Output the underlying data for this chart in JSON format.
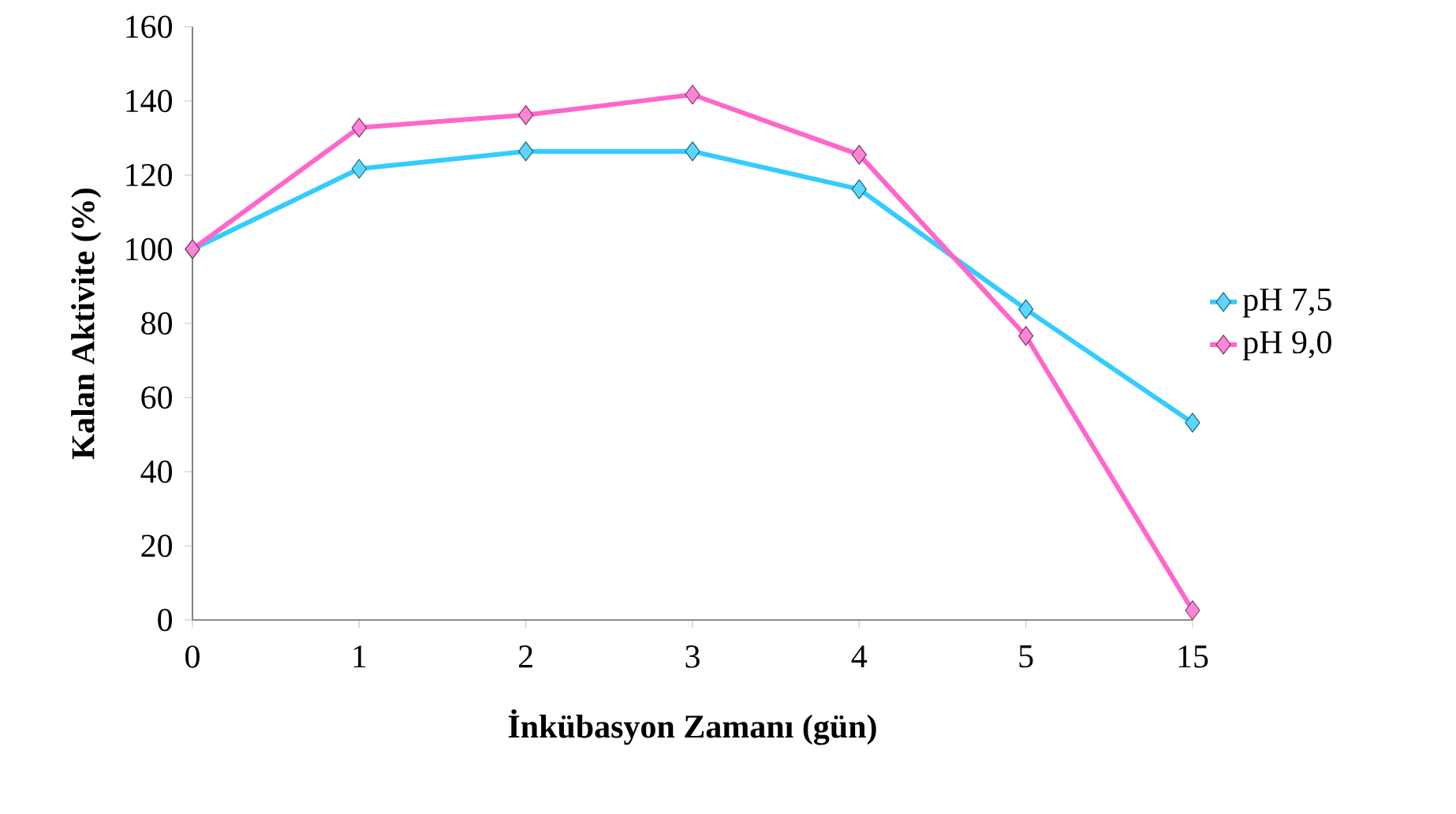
{
  "chart_data": {
    "type": "line",
    "xlabel": "İnkübasyon Zamanı (gün)",
    "ylabel": "Kalan Aktivite (%)",
    "categories": [
      "0",
      "1",
      "2",
      "3",
      "4",
      "5",
      "15"
    ],
    "series": [
      {
        "name": "pH 7,5",
        "color": "#33ccff",
        "values": [
          100,
          121.7,
          126.4,
          126.4,
          116.2,
          83.8,
          53.2
        ]
      },
      {
        "name": "pH 9,0",
        "color": "#ff66cc",
        "values": [
          100,
          132.8,
          136.2,
          141.7,
          125.5,
          76.6,
          2.6
        ]
      }
    ],
    "ylim": [
      0,
      160
    ],
    "yticks": [
      0,
      20,
      40,
      60,
      80,
      100,
      120,
      140,
      160
    ],
    "marker": "diamond",
    "legend": "right",
    "grid": false
  }
}
